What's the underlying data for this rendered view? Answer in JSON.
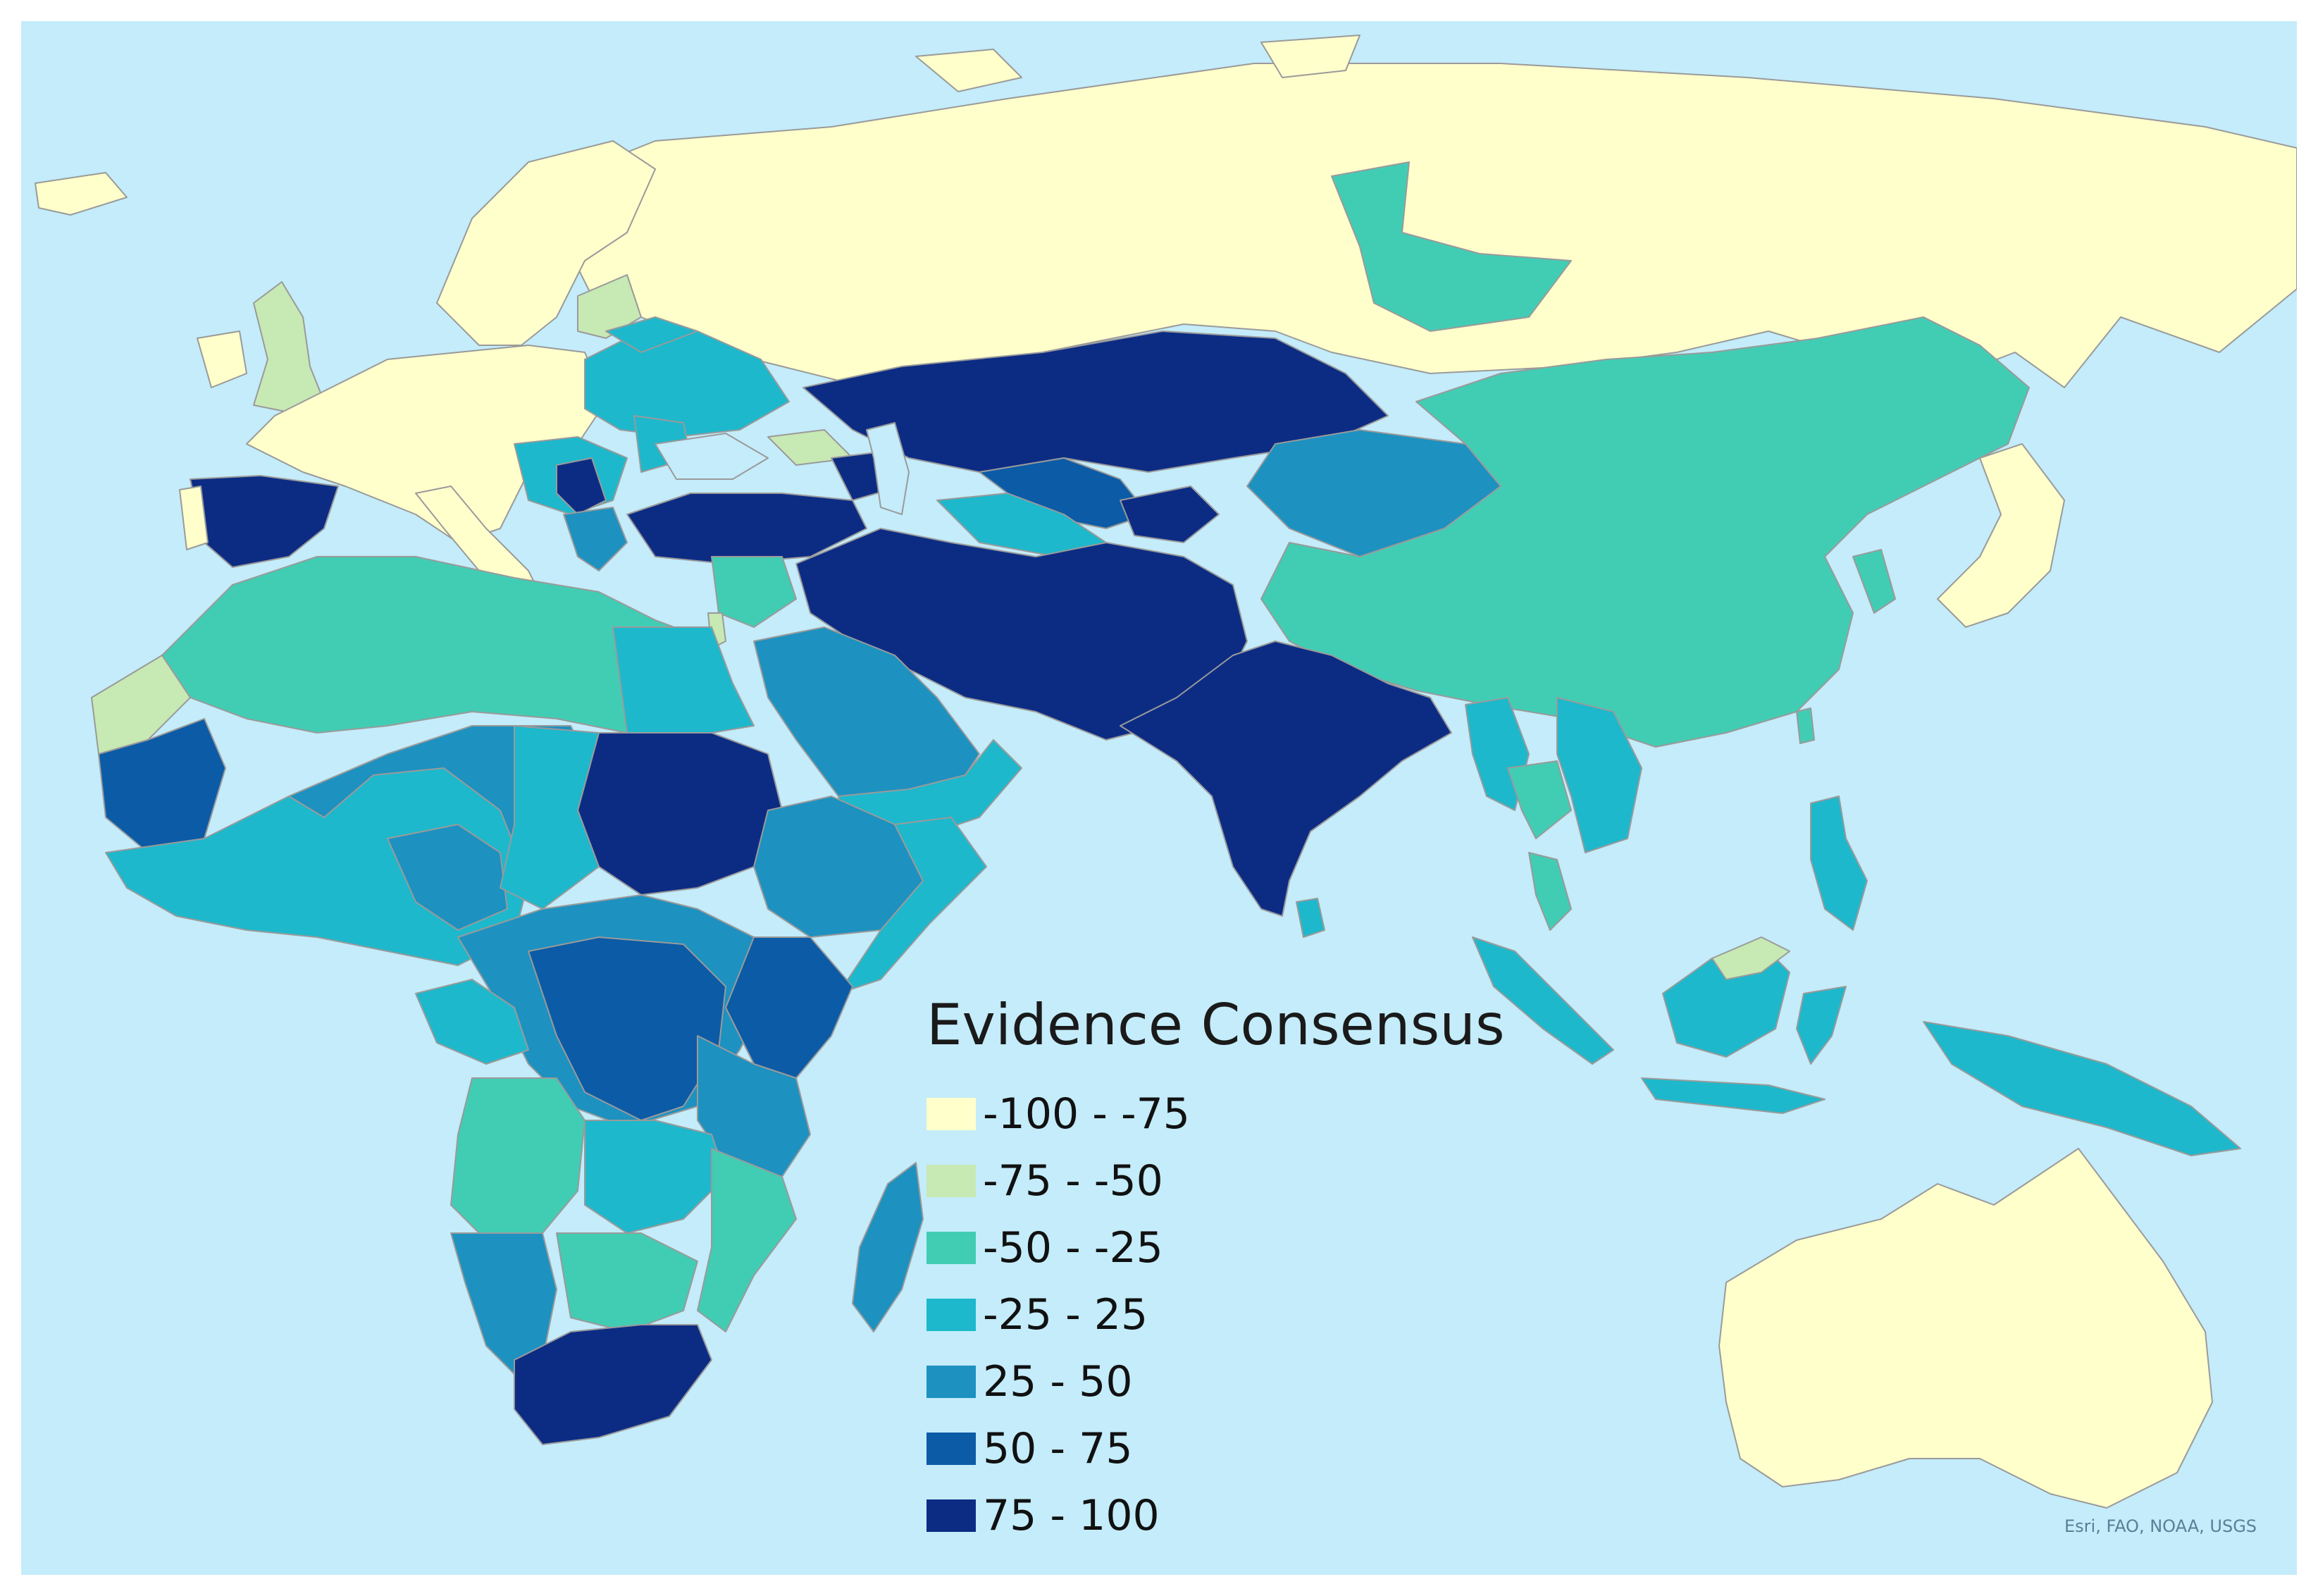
{
  "legend": {
    "title": "Evidence Consensus",
    "classes": [
      {
        "label": "-100 - -75",
        "color": "#ffffcc"
      },
      {
        "label": "-75 - -50",
        "color": "#c7e9b4"
      },
      {
        "label": "-50 - -25",
        "color": "#41cdb4"
      },
      {
        "label": "-25 - 25",
        "color": "#1db8cc"
      },
      {
        "label": "25 - 50",
        "color": "#1d91c0"
      },
      {
        "label": "50 - 75",
        "color": "#0c5ba6"
      },
      {
        "label": "75 - 100",
        "color": "#0c2c84"
      }
    ]
  },
  "attribution": "Esri, FAO, NOAA, USGS",
  "colors": {
    "ocean": "#c4ecfa",
    "border": "#808080"
  }
}
